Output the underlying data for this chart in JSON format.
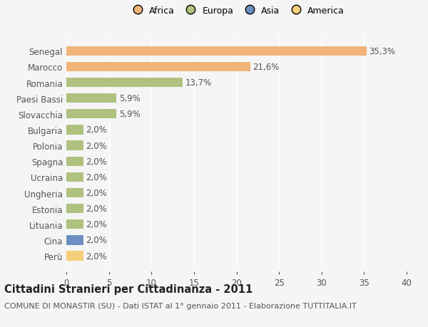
{
  "categories": [
    "Perù",
    "Cina",
    "Lituania",
    "Estonia",
    "Ungheria",
    "Ucraina",
    "Spagna",
    "Polonia",
    "Bulgaria",
    "Slovacchia",
    "Paesi Bassi",
    "Romania",
    "Marocco",
    "Senegal"
  ],
  "values": [
    2.0,
    2.0,
    2.0,
    2.0,
    2.0,
    2.0,
    2.0,
    2.0,
    2.0,
    5.9,
    5.9,
    13.7,
    21.6,
    35.3
  ],
  "labels": [
    "2,0%",
    "2,0%",
    "2,0%",
    "2,0%",
    "2,0%",
    "2,0%",
    "2,0%",
    "2,0%",
    "2,0%",
    "5,9%",
    "5,9%",
    "13,7%",
    "21,6%",
    "35,3%"
  ],
  "colors": [
    "#f5cf7a",
    "#6b8fc2",
    "#afc17e",
    "#afc17e",
    "#afc17e",
    "#afc17e",
    "#afc17e",
    "#afc17e",
    "#afc17e",
    "#afc17e",
    "#afc17e",
    "#afc17e",
    "#f0b47a",
    "#f0b47a"
  ],
  "continent_colors": {
    "Africa": "#f0b47a",
    "Europa": "#afc17e",
    "Asia": "#6b8fc2",
    "America": "#f5cf7a"
  },
  "xlim": [
    0,
    40
  ],
  "xticks": [
    0,
    5,
    10,
    15,
    20,
    25,
    30,
    35,
    40
  ],
  "title": "Cittadini Stranieri per Cittadinanza - 2011",
  "subtitle": "COMUNE DI MONASTIR (SU) - Dati ISTAT al 1° gennaio 2011 - Elaborazione TUTTITALIA.IT",
  "background_color": "#f5f5f5",
  "bar_height": 0.6,
  "grid_color": "#ffffff",
  "label_fontsize": 8.5,
  "tick_fontsize": 8.5,
  "title_fontsize": 10.5,
  "subtitle_fontsize": 8
}
